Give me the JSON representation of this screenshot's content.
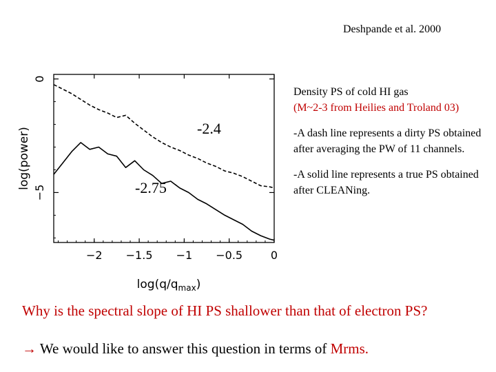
{
  "citation": "Deshpande et al. 2000",
  "chart_data": {
    "type": "line",
    "xlabel": "log(q/q_max)",
    "xlabel_parts": {
      "main": "log(q/q",
      "sub": "max",
      "close": ")"
    },
    "ylabel": "log(power)",
    "xlim": [
      -2.45,
      0
    ],
    "ylim": [
      -7.2,
      0.2
    ],
    "x_ticks": [
      -2,
      -1.5,
      -1,
      -0.5,
      0
    ],
    "x_tick_labels": [
      "−2",
      "−1.5",
      "−1",
      "−0.5",
      "0"
    ],
    "y_ticks": [
      0,
      -5
    ],
    "y_tick_labels": [
      "0",
      "−5"
    ],
    "series": [
      {
        "style": "dashed",
        "x": [
          -2.45,
          -2.35,
          -2.25,
          -2.15,
          -2.05,
          -1.95,
          -1.85,
          -1.75,
          -1.65,
          -1.55,
          -1.45,
          -1.35,
          -1.25,
          -1.15,
          -1.05,
          -0.95,
          -0.85,
          -0.75,
          -0.65,
          -0.55,
          -0.45,
          -0.35,
          -0.25,
          -0.15,
          -0.05,
          0
        ],
        "y": [
          -0.25,
          -0.45,
          -0.65,
          -0.9,
          -1.15,
          -1.35,
          -1.5,
          -1.7,
          -1.6,
          -1.95,
          -2.25,
          -2.55,
          -2.8,
          -3.0,
          -3.15,
          -3.35,
          -3.5,
          -3.7,
          -3.85,
          -4.05,
          -4.15,
          -4.3,
          -4.5,
          -4.7,
          -4.75,
          -4.8
        ]
      },
      {
        "style": "solid",
        "x": [
          -2.45,
          -2.35,
          -2.25,
          -2.15,
          -2.05,
          -1.95,
          -1.85,
          -1.75,
          -1.65,
          -1.55,
          -1.45,
          -1.35,
          -1.25,
          -1.15,
          -1.05,
          -0.95,
          -0.85,
          -0.75,
          -0.65,
          -0.55,
          -0.45,
          -0.35,
          -0.25,
          -0.15,
          -0.05,
          0
        ],
        "y": [
          -4.2,
          -3.7,
          -3.2,
          -2.8,
          -3.1,
          -3.0,
          -3.3,
          -3.4,
          -3.9,
          -3.6,
          -4.0,
          -4.25,
          -4.6,
          -4.5,
          -4.8,
          -5.0,
          -5.3,
          -5.5,
          -5.75,
          -6.0,
          -6.2,
          -6.4,
          -6.7,
          -6.9,
          -7.05,
          -7.1
        ]
      }
    ],
    "annotations": [
      "-2.4",
      "-2.75"
    ]
  },
  "notes": {
    "title": "Density PS of cold HI gas",
    "subtitle": "(M~2-3 from Heilies and Troland 03)",
    "dash_note": "-A dash line represents a dirty PS obtained after averaging the PW of 11 channels.",
    "solid_note": "-A solid line represents a true PS obtained after CLEANing."
  },
  "question": "Why is the spectral slope of HI PS shallower than that of electron PS?",
  "answer": {
    "arrow": "→",
    "text": "We would like to answer this question in terms of ",
    "highlight": "Mrms."
  },
  "colors": {
    "accent_red": "#c00000",
    "line": "#000000"
  }
}
